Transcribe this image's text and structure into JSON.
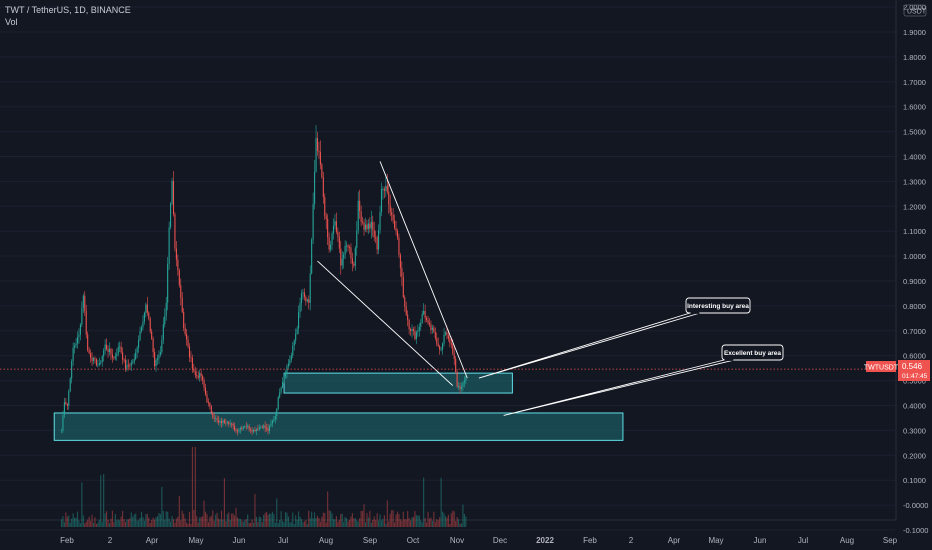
{
  "header": {
    "symbol_line": "TWT / TetherUS, 1D, BINANCE",
    "vol_label": "Vol"
  },
  "chart_data": {
    "type": "candlestick",
    "price_axis": {
      "ticks": [
        "2.0000",
        "1.9000",
        "1.8000",
        "1.7000",
        "1.6000",
        "1.5000",
        "1.4000",
        "1.3000",
        "1.2000",
        "1.1000",
        "1.0000",
        "0.9000",
        "0.8000",
        "0.7000",
        "0.6000",
        "0.5000",
        "0.4000",
        "0.3000",
        "0.2000",
        "0.1000",
        "-0.0000",
        "-0.1000"
      ],
      "tick_values": [
        2.0,
        1.9,
        1.8,
        1.7,
        1.6,
        1.5,
        1.4,
        1.3,
        1.2,
        1.1,
        1.0,
        0.9,
        0.8,
        0.7,
        0.6,
        0.5,
        0.4,
        0.3,
        0.2,
        0.1,
        0.0,
        -0.1
      ],
      "range": [
        -0.12,
        2.02
      ],
      "currency_badge": "USDT"
    },
    "time_axis": {
      "labels": [
        "Feb",
        "2",
        "Apr",
        "May",
        "Jun",
        "Jul",
        "Aug",
        "Sep",
        "Oct",
        "Nov",
        "Dec",
        "2022",
        "Feb",
        "2",
        "Apr",
        "May",
        "Jun",
        "Jul",
        "Aug",
        "Sep"
      ],
      "bold_labels": [
        "2022"
      ]
    },
    "price_path": [
      [
        0,
        0.3
      ],
      [
        2,
        0.42
      ],
      [
        4,
        0.4
      ],
      [
        8,
        0.63
      ],
      [
        12,
        0.68
      ],
      [
        15,
        0.85
      ],
      [
        18,
        0.62
      ],
      [
        22,
        0.58
      ],
      [
        26,
        0.56
      ],
      [
        30,
        0.64
      ],
      [
        36,
        0.59
      ],
      [
        40,
        0.64
      ],
      [
        44,
        0.55
      ],
      [
        50,
        0.58
      ],
      [
        54,
        0.7
      ],
      [
        58,
        0.8
      ],
      [
        62,
        0.67
      ],
      [
        64,
        0.56
      ],
      [
        68,
        0.62
      ],
      [
        72,
        0.82
      ],
      [
        74,
        1.1
      ],
      [
        76,
        1.28
      ],
      [
        78,
        1.02
      ],
      [
        81,
        0.9
      ],
      [
        84,
        0.72
      ],
      [
        88,
        0.6
      ],
      [
        92,
        0.52
      ],
      [
        96,
        0.52
      ],
      [
        100,
        0.42
      ],
      [
        104,
        0.36
      ],
      [
        108,
        0.33
      ],
      [
        114,
        0.34
      ],
      [
        120,
        0.3
      ],
      [
        126,
        0.32
      ],
      [
        132,
        0.3
      ],
      [
        138,
        0.32
      ],
      [
        142,
        0.3
      ],
      [
        147,
        0.36
      ],
      [
        150,
        0.46
      ],
      [
        154,
        0.54
      ],
      [
        158,
        0.6
      ],
      [
        162,
        0.72
      ],
      [
        165,
        0.85
      ],
      [
        168,
        0.82
      ],
      [
        170,
        0.8
      ],
      [
        173,
        1.2
      ],
      [
        175,
        1.45
      ],
      [
        178,
        1.36
      ],
      [
        181,
        1.18
      ],
      [
        184,
        1.02
      ],
      [
        188,
        1.14
      ],
      [
        192,
        0.98
      ],
      [
        197,
        1.05
      ],
      [
        201,
        0.96
      ],
      [
        204,
        1.2
      ],
      [
        208,
        1.12
      ],
      [
        213,
        1.12
      ],
      [
        217,
        1.04
      ],
      [
        220,
        1.25
      ],
      [
        223,
        1.3
      ],
      [
        226,
        1.18
      ],
      [
        230,
        1.12
      ],
      [
        233,
        0.95
      ],
      [
        236,
        0.8
      ],
      [
        239,
        0.72
      ],
      [
        243,
        0.68
      ],
      [
        246,
        0.72
      ],
      [
        249,
        0.78
      ],
      [
        252,
        0.72
      ],
      [
        255,
        0.7
      ],
      [
        258,
        0.66
      ],
      [
        261,
        0.62
      ],
      [
        264,
        0.7
      ],
      [
        267,
        0.66
      ],
      [
        270,
        0.58
      ],
      [
        272,
        0.48
      ],
      [
        275,
        0.47
      ],
      [
        278,
        0.51
      ]
    ],
    "trendlines": [
      {
        "from": [
          176,
          0.98
        ],
        "to": [
          269,
          0.48
        ]
      },
      {
        "from": [
          219,
          1.38
        ],
        "to": [
          279,
          0.51
        ]
      }
    ],
    "zones": [
      {
        "name": "Interesting buy area",
        "days": [
          153,
          310
        ],
        "price": [
          0.45,
          0.53
        ]
      },
      {
        "name": "Excellent buy area",
        "days": [
          -5,
          386
        ],
        "price": [
          0.26,
          0.37
        ]
      }
    ],
    "callouts": [
      {
        "label": "Interesting buy area",
        "points_to": [
          287,
          0.51
        ]
      },
      {
        "label": "Excellent buy area",
        "points_to": [
          304,
          0.36
        ]
      }
    ],
    "last_price": {
      "symbol": "TWTUSDT",
      "value": "0.546",
      "countdown": "01:47:45",
      "numeric": 0.546
    },
    "colors": {
      "background": "#131722",
      "up": "#26a69a",
      "down": "#ef5350",
      "zone_fill": "#1f6f75",
      "zone_border": "#5fe0e8",
      "trendline": "#ffffff",
      "axis_text": "#b2b5be",
      "grid": "#1c2030"
    }
  }
}
